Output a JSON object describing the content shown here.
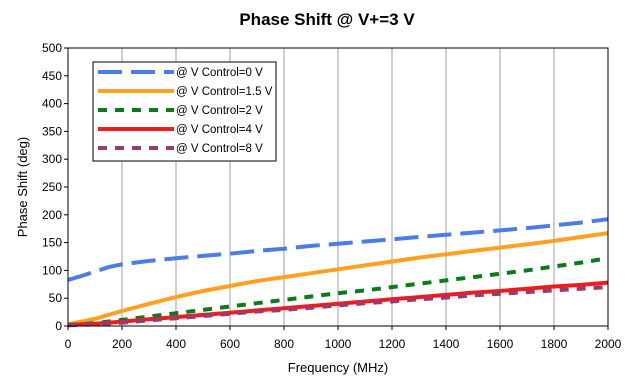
{
  "chart_data": {
    "type": "line",
    "title": "Phase Shift @ V+=3 V",
    "xlabel": "Frequency (MHz)",
    "ylabel": "Phase Shift (deg)",
    "xlim": [
      0,
      2000
    ],
    "ylim": [
      0,
      500
    ],
    "xticks": [
      0,
      200,
      400,
      600,
      800,
      1000,
      1200,
      1400,
      1600,
      1800,
      2000
    ],
    "yticks": [
      0,
      50,
      100,
      150,
      200,
      250,
      300,
      350,
      400,
      450,
      500
    ],
    "grid": {
      "vertical": true,
      "horizontal": false
    },
    "legend_position": "top-left",
    "series": [
      {
        "name": "@ V Control=0 V",
        "color": "#4a7de8",
        "dash": "long-dash",
        "x": [
          0,
          50,
          100,
          150,
          200,
          300,
          400,
          500,
          600,
          700,
          800,
          900,
          1000,
          1100,
          1200,
          1300,
          1400,
          1500,
          1600,
          1700,
          1800,
          1900,
          2000
        ],
        "y": [
          83,
          90,
          98,
          106,
          111,
          117,
          122,
          126,
          130,
          135,
          139,
          144,
          148,
          152,
          156,
          160,
          164,
          168,
          172,
          176,
          181,
          186,
          192
        ]
      },
      {
        "name": "@ V Control=1.5 V",
        "color": "#ffa020",
        "dash": "solid",
        "x": [
          0,
          50,
          100,
          200,
          300,
          400,
          500,
          600,
          700,
          800,
          900,
          1000,
          1100,
          1200,
          1300,
          1400,
          1500,
          1600,
          1700,
          1800,
          1900,
          2000
        ],
        "y": [
          3,
          8,
          13,
          27,
          40,
          52,
          63,
          72,
          81,
          88,
          95,
          102,
          109,
          116,
          123,
          129,
          135,
          141,
          147,
          153,
          160,
          167
        ]
      },
      {
        "name": "@ V Control=2 V",
        "color": "#0a7a1a",
        "dash": "short-dash",
        "x": [
          0,
          100,
          200,
          300,
          400,
          500,
          600,
          700,
          800,
          900,
          1000,
          1100,
          1200,
          1300,
          1400,
          1500,
          1600,
          1700,
          1800,
          1900,
          2000
        ],
        "y": [
          2,
          5,
          11,
          17,
          23,
          29,
          35,
          41,
          47,
          53,
          59,
          64,
          70,
          76,
          82,
          88,
          94,
          100,
          107,
          114,
          122
        ]
      },
      {
        "name": "@ V Control=4 V",
        "color": "#ee1c1c",
        "dash": "solid",
        "x": [
          0,
          100,
          200,
          300,
          400,
          500,
          600,
          700,
          800,
          900,
          1000,
          1100,
          1200,
          1300,
          1400,
          1500,
          1600,
          1700,
          1800,
          1900,
          2000
        ],
        "y": [
          2,
          4,
          8,
          12,
          16,
          20,
          24,
          28,
          32,
          36,
          40,
          44,
          48,
          52,
          56,
          60,
          63,
          67,
          71,
          74,
          78
        ]
      },
      {
        "name": "@ V Control=8 V",
        "color": "#9c3a6e",
        "dash": "short-dash",
        "x": [
          0,
          100,
          200,
          300,
          400,
          500,
          600,
          700,
          800,
          900,
          1000,
          1100,
          1200,
          1300,
          1400,
          1500,
          1600,
          1700,
          1800,
          1900,
          2000
        ],
        "y": [
          1,
          3,
          6,
          10,
          14,
          18,
          22,
          26,
          29,
          33,
          37,
          41,
          44,
          48,
          51,
          55,
          58,
          61,
          64,
          67,
          70
        ]
      }
    ]
  }
}
